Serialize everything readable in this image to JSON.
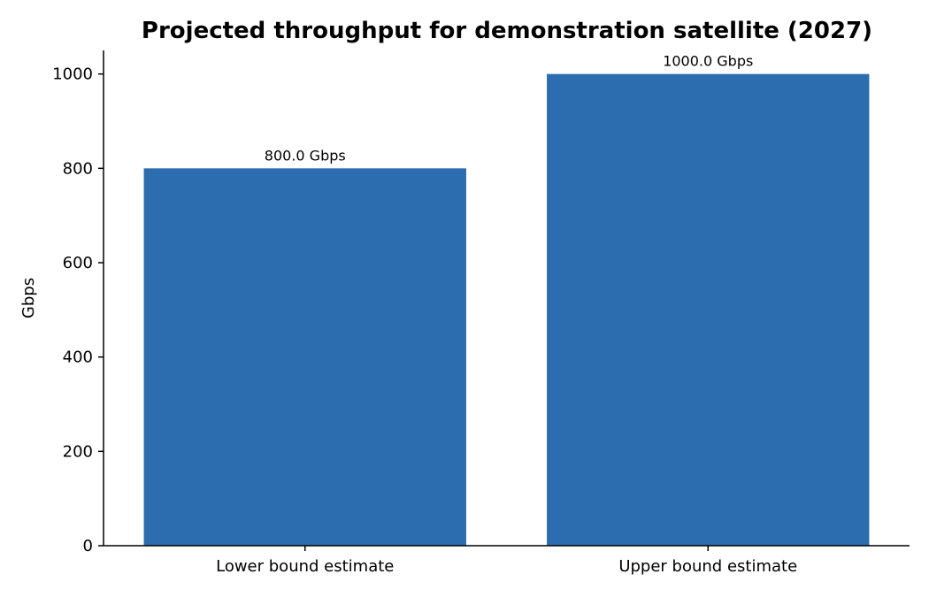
{
  "chart_data": {
    "type": "bar",
    "title": "Projected throughput for demonstration satellite (2027)",
    "xlabel": "",
    "ylabel": "Gbps",
    "categories": [
      "Lower bound estimate",
      "Upper bound estimate"
    ],
    "values": [
      800.0,
      1000.0
    ],
    "data_labels": [
      "800.0 Gbps",
      "1000.0 Gbps"
    ],
    "ylim": [
      0,
      1050
    ],
    "yticks": [
      0,
      200,
      400,
      600,
      800,
      1000
    ],
    "grid": false,
    "legend": "none",
    "bar_color": "#2c6db0"
  }
}
